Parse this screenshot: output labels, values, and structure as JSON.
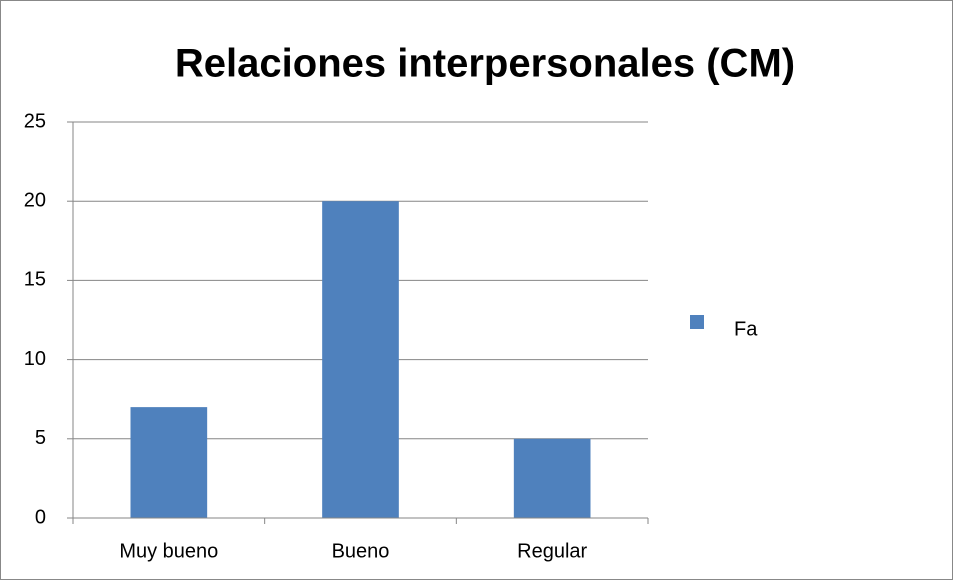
{
  "chart_data": {
    "type": "bar",
    "title": "Relaciones interpersonales (CM)",
    "categories": [
      "Muy bueno",
      "Bueno",
      "Regular"
    ],
    "series": [
      {
        "name": "Fa",
        "color": "#4f81bd",
        "values": [
          7,
          20,
          5
        ]
      }
    ],
    "ylim": [
      0,
      25
    ],
    "yticks": [
      0,
      5,
      10,
      15,
      20,
      25
    ],
    "grid": true,
    "legend": "right"
  }
}
